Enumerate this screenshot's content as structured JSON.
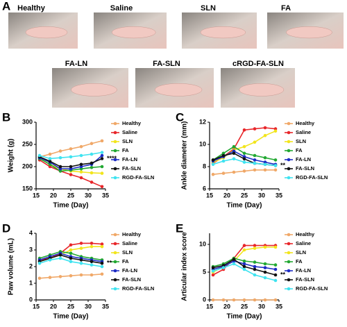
{
  "photos": {
    "panel": "A",
    "labels": [
      "Healthy",
      "Saline",
      "SLN",
      "FA",
      "FA-LN",
      "FA-SLN",
      "cRGD-FA-SLN"
    ]
  },
  "chart_data": [
    {
      "type": "line",
      "panel": "B",
      "xlabel": "Time (Day)",
      "ylabel": "Weight (g)",
      "annotation": "****",
      "x": [
        16,
        19,
        22,
        25,
        28,
        31,
        34
      ],
      "xlim": [
        15,
        35
      ],
      "xticks": [
        15,
        20,
        25,
        30,
        35
      ],
      "ylim": [
        150,
        300
      ],
      "yticks": [
        150,
        200,
        250,
        300
      ],
      "series": [
        {
          "name": "Healthy",
          "color": "#f0a868",
          "values": [
            222,
            228,
            235,
            240,
            245,
            252,
            258
          ]
        },
        {
          "name": "Saline",
          "color": "#e8262a",
          "values": [
            215,
            200,
            190,
            182,
            175,
            165,
            155
          ]
        },
        {
          "name": "SLN",
          "color": "#f2e51c",
          "values": [
            220,
            205,
            195,
            190,
            188,
            186,
            185
          ]
        },
        {
          "name": "FA",
          "color": "#22a832",
          "values": [
            218,
            205,
            190,
            192,
            195,
            198,
            200
          ]
        },
        {
          "name": "FA-LN",
          "color": "#1c2bc4",
          "values": [
            220,
            210,
            195,
            195,
            200,
            205,
            225
          ]
        },
        {
          "name": "FA-SLN",
          "color": "#111111",
          "values": [
            222,
            212,
            200,
            200,
            205,
            208,
            218
          ]
        },
        {
          "name": "RGD-FA-SLN",
          "color": "#3fe3f0",
          "values": [
            225,
            218,
            220,
            222,
            225,
            228,
            232
          ]
        }
      ]
    },
    {
      "type": "line",
      "panel": "C",
      "xlabel": "Time (Day)",
      "ylabel": "Ankle diameter (mm)",
      "annotation": "**",
      "x": [
        16,
        19,
        22,
        25,
        28,
        31,
        34
      ],
      "xlim": [
        15,
        35
      ],
      "xticks": [
        15,
        20,
        25,
        30,
        35
      ],
      "ylim": [
        6,
        12
      ],
      "yticks": [
        6,
        8,
        10,
        12
      ],
      "series": [
        {
          "name": "Healthy",
          "color": "#f0a868",
          "values": [
            7.3,
            7.4,
            7.5,
            7.6,
            7.7,
            7.7,
            7.7
          ]
        },
        {
          "name": "Saline",
          "color": "#e8262a",
          "values": [
            8.3,
            8.9,
            9.6,
            11.3,
            11.4,
            11.5,
            11.4
          ]
        },
        {
          "name": "SLN",
          "color": "#f2e51c",
          "values": [
            8.4,
            8.8,
            9.5,
            9.8,
            10.2,
            10.8,
            11.2
          ]
        },
        {
          "name": "FA",
          "color": "#22a832",
          "values": [
            8.6,
            9.2,
            9.8,
            9.2,
            9.0,
            8.8,
            8.6
          ]
        },
        {
          "name": "FA-LN",
          "color": "#1c2bc4",
          "values": [
            8.5,
            8.9,
            9.4,
            8.9,
            8.6,
            8.4,
            8.2
          ]
        },
        {
          "name": "FA-SLN",
          "color": "#111111",
          "values": [
            8.6,
            9.0,
            9.2,
            8.7,
            8.3,
            8.2,
            8.1
          ]
        },
        {
          "name": "RGD-FA-SLN",
          "color": "#3fe3f0",
          "values": [
            8.2,
            8.5,
            8.7,
            8.4,
            8.3,
            8.2,
            8.1
          ]
        }
      ]
    },
    {
      "type": "line",
      "panel": "D",
      "xlabel": "Time (Day)",
      "ylabel": "Paw volume (mL)",
      "annotation": "**",
      "x": [
        16,
        19,
        22,
        25,
        28,
        31,
        34
      ],
      "xlim": [
        15,
        35
      ],
      "xticks": [
        15,
        20,
        25,
        30,
        35
      ],
      "ylim": [
        0,
        4
      ],
      "yticks": [
        0,
        1,
        2,
        3,
        4
      ],
      "series": [
        {
          "name": "Healthy",
          "color": "#f0a868",
          "values": [
            1.3,
            1.35,
            1.4,
            1.45,
            1.5,
            1.5,
            1.55
          ]
        },
        {
          "name": "Saline",
          "color": "#e8262a",
          "values": [
            2.4,
            2.5,
            2.8,
            3.3,
            3.4,
            3.4,
            3.35
          ]
        },
        {
          "name": "SLN",
          "color": "#f2e51c",
          "values": [
            2.3,
            2.5,
            2.7,
            3.0,
            3.1,
            3.2,
            3.2
          ]
        },
        {
          "name": "FA",
          "color": "#22a832",
          "values": [
            2.5,
            2.7,
            2.9,
            2.8,
            2.6,
            2.5,
            2.4
          ]
        },
        {
          "name": "FA-LN",
          "color": "#1c2bc4",
          "values": [
            2.4,
            2.6,
            2.8,
            2.6,
            2.5,
            2.4,
            2.3
          ]
        },
        {
          "name": "FA-SLN",
          "color": "#111111",
          "values": [
            2.3,
            2.5,
            2.7,
            2.5,
            2.4,
            2.3,
            2.2
          ]
        },
        {
          "name": "RGD-FA-SLN",
          "color": "#3fe3f0",
          "values": [
            2.2,
            2.4,
            2.5,
            2.3,
            2.2,
            2.1,
            2.0
          ]
        }
      ]
    },
    {
      "type": "line",
      "panel": "E",
      "xlabel": "Time (Day)",
      "ylabel": "Articular index score",
      "annotation": "**",
      "x": [
        16,
        19,
        22,
        25,
        28,
        31,
        34
      ],
      "xlim": [
        15,
        35
      ],
      "xticks": [
        15,
        20,
        25,
        30,
        35
      ],
      "ylim": [
        0,
        12
      ],
      "yticks": [
        0,
        5,
        10
      ],
      "series": [
        {
          "name": "Healthy",
          "color": "#f0a868",
          "values": [
            0,
            0,
            0,
            0,
            0,
            0,
            0
          ]
        },
        {
          "name": "Saline",
          "color": "#e8262a",
          "values": [
            4.5,
            5.5,
            7.5,
            9.8,
            9.8,
            9.8,
            9.8
          ]
        },
        {
          "name": "SLN",
          "color": "#f2e51c",
          "values": [
            5.0,
            6.0,
            7.0,
            9.0,
            9.3,
            9.5,
            9.5
          ]
        },
        {
          "name": "FA",
          "color": "#22a832",
          "values": [
            6.0,
            6.5,
            7.5,
            7.0,
            6.8,
            6.5,
            6.3
          ]
        },
        {
          "name": "FA-LN",
          "color": "#1c2bc4",
          "values": [
            5.5,
            6.0,
            7.0,
            6.5,
            6.0,
            5.8,
            5.5
          ]
        },
        {
          "name": "FA-SLN",
          "color": "#111111",
          "values": [
            5.8,
            6.2,
            7.3,
            6.0,
            5.5,
            5.0,
            4.5
          ]
        },
        {
          "name": "RGD-FA-SLN",
          "color": "#3fe3f0",
          "values": [
            5.2,
            5.8,
            6.5,
            5.5,
            4.5,
            4.0,
            3.5
          ]
        }
      ]
    }
  ]
}
